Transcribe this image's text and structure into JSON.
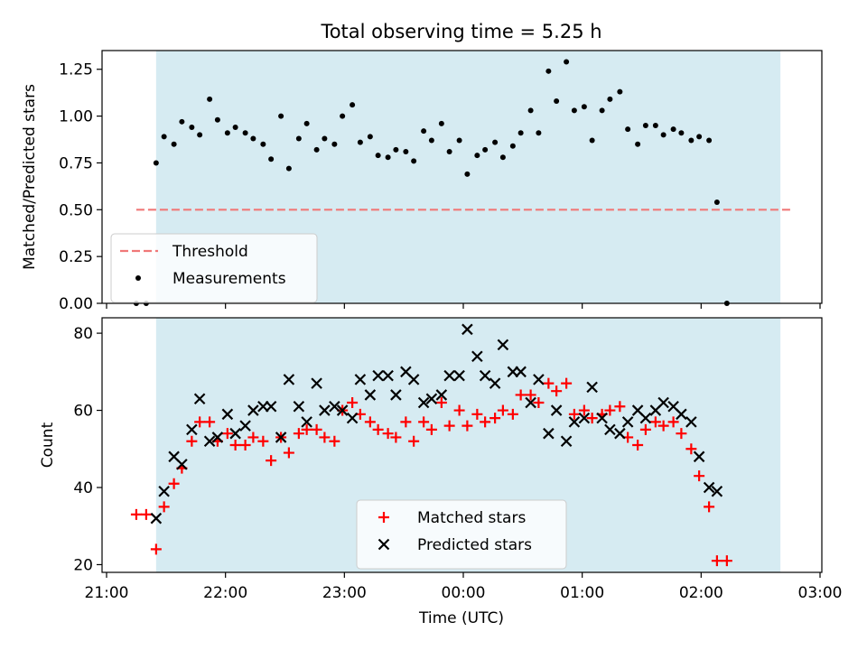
{
  "chart_data": [
    {
      "type": "scatter",
      "title": "Total observing time = 5.25 h",
      "ylabel": "Matched/Predicted stars",
      "xlim": [
        "21:00",
        "03:00"
      ],
      "ylim": [
        0,
        1.35
      ],
      "yticks": [
        "0.00",
        "0.25",
        "0.50",
        "0.75",
        "1.00",
        "1.25"
      ],
      "shaded_window": {
        "start": "21:25",
        "end": "02:40"
      },
      "threshold": {
        "value": 0.5,
        "from": "21:15",
        "to": "02:45",
        "color": "#f07878"
      },
      "legend": {
        "placement": "lower-left",
        "entries": [
          {
            "label": "Threshold",
            "marker": "dashed-line",
            "color": "#f07878"
          },
          {
            "label": "Measurements",
            "marker": "dot",
            "color": "#000000"
          }
        ]
      },
      "series": [
        {
          "name": "Measurements",
          "color": "#000000",
          "points": [
            [
              "21:15",
              0.0
            ],
            [
              "21:20",
              0.0
            ],
            [
              "21:25",
              0.75
            ],
            [
              "21:29",
              0.89
            ],
            [
              "21:34",
              0.85
            ],
            [
              "21:38",
              0.97
            ],
            [
              "21:43",
              0.94
            ],
            [
              "21:47",
              0.9
            ],
            [
              "21:52",
              1.09
            ],
            [
              "21:56",
              0.98
            ],
            [
              "22:01",
              0.91
            ],
            [
              "22:05",
              0.94
            ],
            [
              "22:10",
              0.91
            ],
            [
              "22:14",
              0.88
            ],
            [
              "22:19",
              0.85
            ],
            [
              "22:23",
              0.77
            ],
            [
              "22:28",
              1.0
            ],
            [
              "22:32",
              0.72
            ],
            [
              "22:37",
              0.88
            ],
            [
              "22:41",
              0.96
            ],
            [
              "22:46",
              0.82
            ],
            [
              "22:50",
              0.88
            ],
            [
              "22:55",
              0.85
            ],
            [
              "22:59",
              1.0
            ],
            [
              "23:04",
              1.06
            ],
            [
              "23:08",
              0.86
            ],
            [
              "23:13",
              0.89
            ],
            [
              "23:17",
              0.79
            ],
            [
              "23:22",
              0.78
            ],
            [
              "23:26",
              0.82
            ],
            [
              "23:31",
              0.81
            ],
            [
              "23:35",
              0.76
            ],
            [
              "23:40",
              0.92
            ],
            [
              "23:44",
              0.87
            ],
            [
              "23:49",
              0.96
            ],
            [
              "23:53",
              0.81
            ],
            [
              "23:58",
              0.87
            ],
            [
              "00:02",
              0.69
            ],
            [
              "00:07",
              0.79
            ],
            [
              "00:11",
              0.82
            ],
            [
              "00:16",
              0.86
            ],
            [
              "00:20",
              0.78
            ],
            [
              "00:25",
              0.84
            ],
            [
              "00:29",
              0.91
            ],
            [
              "00:34",
              1.03
            ],
            [
              "00:38",
              0.91
            ],
            [
              "00:43",
              1.24
            ],
            [
              "00:47",
              1.08
            ],
            [
              "00:52",
              1.29
            ],
            [
              "00:56",
              1.03
            ],
            [
              "01:01",
              1.05
            ],
            [
              "01:05",
              0.87
            ],
            [
              "01:10",
              1.03
            ],
            [
              "01:14",
              1.09
            ],
            [
              "01:19",
              1.13
            ],
            [
              "01:23",
              0.93
            ],
            [
              "01:28",
              0.85
            ],
            [
              "01:32",
              0.95
            ],
            [
              "01:37",
              0.95
            ],
            [
              "01:41",
              0.9
            ],
            [
              "01:46",
              0.93
            ],
            [
              "01:50",
              0.91
            ],
            [
              "01:55",
              0.87
            ],
            [
              "01:59",
              0.89
            ],
            [
              "02:04",
              0.87
            ],
            [
              "02:08",
              0.54
            ],
            [
              "02:13",
              0.0
            ]
          ]
        }
      ]
    },
    {
      "type": "scatter",
      "xlabel": "Time (UTC)",
      "ylabel": "Count",
      "xlim": [
        "21:00",
        "03:00"
      ],
      "ylim": [
        18,
        84
      ],
      "xticks": [
        "21:00",
        "22:00",
        "23:00",
        "00:00",
        "01:00",
        "02:00",
        "03:00"
      ],
      "yticks": [
        "20",
        "40",
        "60",
        "80"
      ],
      "shaded_window": {
        "start": "21:25",
        "end": "02:40"
      },
      "legend": {
        "placement": "lower-center",
        "entries": [
          {
            "label": "Matched stars",
            "marker": "plus",
            "color": "#ff0000"
          },
          {
            "label": "Predicted stars",
            "marker": "x",
            "color": "#000000"
          }
        ]
      },
      "series": [
        {
          "name": "Matched stars",
          "marker": "plus",
          "color": "#ff0000",
          "points": [
            [
              "21:15",
              33
            ],
            [
              "21:20",
              33
            ],
            [
              "21:25",
              24
            ],
            [
              "21:29",
              35
            ],
            [
              "21:34",
              41
            ],
            [
              "21:38",
              45
            ],
            [
              "21:43",
              52
            ],
            [
              "21:47",
              57
            ],
            [
              "21:52",
              57
            ],
            [
              "21:56",
              52
            ],
            [
              "22:01",
              54
            ],
            [
              "22:05",
              51
            ],
            [
              "22:10",
              51
            ],
            [
              "22:14",
              53
            ],
            [
              "22:19",
              52
            ],
            [
              "22:23",
              47
            ],
            [
              "22:28",
              53
            ],
            [
              "22:32",
              49
            ],
            [
              "22:37",
              54
            ],
            [
              "22:41",
              55
            ],
            [
              "22:46",
              55
            ],
            [
              "22:50",
              53
            ],
            [
              "22:55",
              52
            ],
            [
              "22:59",
              60
            ],
            [
              "23:04",
              62
            ],
            [
              "23:08",
              59
            ],
            [
              "23:13",
              57
            ],
            [
              "23:17",
              55
            ],
            [
              "23:22",
              54
            ],
            [
              "23:26",
              53
            ],
            [
              "23:31",
              57
            ],
            [
              "23:35",
              52
            ],
            [
              "23:40",
              57
            ],
            [
              "23:44",
              55
            ],
            [
              "23:49",
              62
            ],
            [
              "23:53",
              56
            ],
            [
              "23:58",
              60
            ],
            [
              "00:02",
              56
            ],
            [
              "00:07",
              59
            ],
            [
              "00:11",
              57
            ],
            [
              "00:16",
              58
            ],
            [
              "00:20",
              60
            ],
            [
              "00:25",
              59
            ],
            [
              "00:29",
              64
            ],
            [
              "00:34",
              64
            ],
            [
              "00:38",
              62
            ],
            [
              "00:43",
              67
            ],
            [
              "00:47",
              65
            ],
            [
              "00:52",
              67
            ],
            [
              "00:56",
              59
            ],
            [
              "01:01",
              60
            ],
            [
              "01:05",
              58
            ],
            [
              "01:10",
              59
            ],
            [
              "01:14",
              60
            ],
            [
              "01:19",
              61
            ],
            [
              "01:23",
              53
            ],
            [
              "01:28",
              51
            ],
            [
              "01:32",
              55
            ],
            [
              "01:37",
              57
            ],
            [
              "01:41",
              56
            ],
            [
              "01:46",
              57
            ],
            [
              "01:50",
              54
            ],
            [
              "01:55",
              50
            ],
            [
              "01:59",
              43
            ],
            [
              "02:04",
              35
            ],
            [
              "02:08",
              21
            ],
            [
              "02:13",
              21
            ]
          ]
        },
        {
          "name": "Predicted stars",
          "marker": "x",
          "color": "#000000",
          "points": [
            [
              "21:25",
              32
            ],
            [
              "21:29",
              39
            ],
            [
              "21:34",
              48
            ],
            [
              "21:38",
              46
            ],
            [
              "21:43",
              55
            ],
            [
              "21:47",
              63
            ],
            [
              "21:52",
              52
            ],
            [
              "21:56",
              53
            ],
            [
              "22:01",
              59
            ],
            [
              "22:05",
              54
            ],
            [
              "22:10",
              56
            ],
            [
              "22:14",
              60
            ],
            [
              "22:19",
              61
            ],
            [
              "22:23",
              61
            ],
            [
              "22:28",
              53
            ],
            [
              "22:32",
              68
            ],
            [
              "22:37",
              61
            ],
            [
              "22:41",
              57
            ],
            [
              "22:46",
              67
            ],
            [
              "22:50",
              60
            ],
            [
              "22:55",
              61
            ],
            [
              "22:59",
              60
            ],
            [
              "23:04",
              58
            ],
            [
              "23:08",
              68
            ],
            [
              "23:13",
              64
            ],
            [
              "23:17",
              69
            ],
            [
              "23:22",
              69
            ],
            [
              "23:26",
              64
            ],
            [
              "23:31",
              70
            ],
            [
              "23:35",
              68
            ],
            [
              "23:40",
              62
            ],
            [
              "23:44",
              63
            ],
            [
              "23:49",
              64
            ],
            [
              "23:53",
              69
            ],
            [
              "23:58",
              69
            ],
            [
              "00:02",
              81
            ],
            [
              "00:07",
              74
            ],
            [
              "00:11",
              69
            ],
            [
              "00:16",
              67
            ],
            [
              "00:20",
              77
            ],
            [
              "00:25",
              70
            ],
            [
              "00:29",
              70
            ],
            [
              "00:34",
              62
            ],
            [
              "00:38",
              68
            ],
            [
              "00:43",
              54
            ],
            [
              "00:47",
              60
            ],
            [
              "00:52",
              52
            ],
            [
              "00:56",
              57
            ],
            [
              "01:01",
              58
            ],
            [
              "01:05",
              66
            ],
            [
              "01:10",
              58
            ],
            [
              "01:14",
              55
            ],
            [
              "01:19",
              54
            ],
            [
              "01:23",
              57
            ],
            [
              "01:28",
              60
            ],
            [
              "01:32",
              58
            ],
            [
              "01:37",
              60
            ],
            [
              "01:41",
              62
            ],
            [
              "01:46",
              61
            ],
            [
              "01:50",
              59
            ],
            [
              "01:55",
              57
            ],
            [
              "01:59",
              48
            ],
            [
              "02:04",
              40
            ],
            [
              "02:08",
              39
            ]
          ]
        }
      ]
    }
  ]
}
